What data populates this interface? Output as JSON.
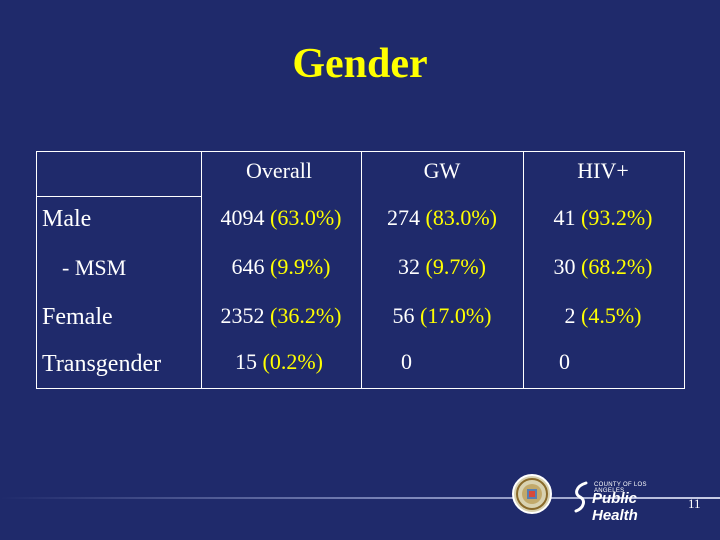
{
  "slide": {
    "title": "Gender",
    "page_number": "11"
  },
  "table": {
    "columns": [
      "Overall",
      "GW",
      "HIV+"
    ],
    "rows": [
      {
        "label": "Male",
        "cells": [
          {
            "num": "4094",
            "pct": "(63.0%)"
          },
          {
            "num": "274",
            "pct": "(83.0%)"
          },
          {
            "num": "41",
            "pct": "(93.2%)"
          }
        ]
      },
      {
        "label": "- MSM",
        "cells": [
          {
            "num": "646",
            "pct": "(9.9%)"
          },
          {
            "num": "32",
            "pct": "(9.7%)"
          },
          {
            "num": "30",
            "pct": "(68.2%)"
          }
        ]
      },
      {
        "label": "Female",
        "cells": [
          {
            "num": "2352",
            "pct": "(36.2%)"
          },
          {
            "num": "56",
            "pct": "(17.0%)"
          },
          {
            "num": "2",
            "pct": "(4.5%)"
          }
        ]
      },
      {
        "label": "Transgender",
        "cells": [
          {
            "num": "15",
            "pct": "(0.2%)"
          },
          {
            "num": "0",
            "pct": ""
          },
          {
            "num": "0",
            "pct": ""
          }
        ]
      }
    ]
  },
  "footer": {
    "logo_small": "COUNTY OF LOS ANGELES",
    "logo_big": "Public Health"
  },
  "colors": {
    "background": "#1f2a6b",
    "title": "#ffff00",
    "percent": "#ffff00",
    "text": "#ffffff"
  }
}
